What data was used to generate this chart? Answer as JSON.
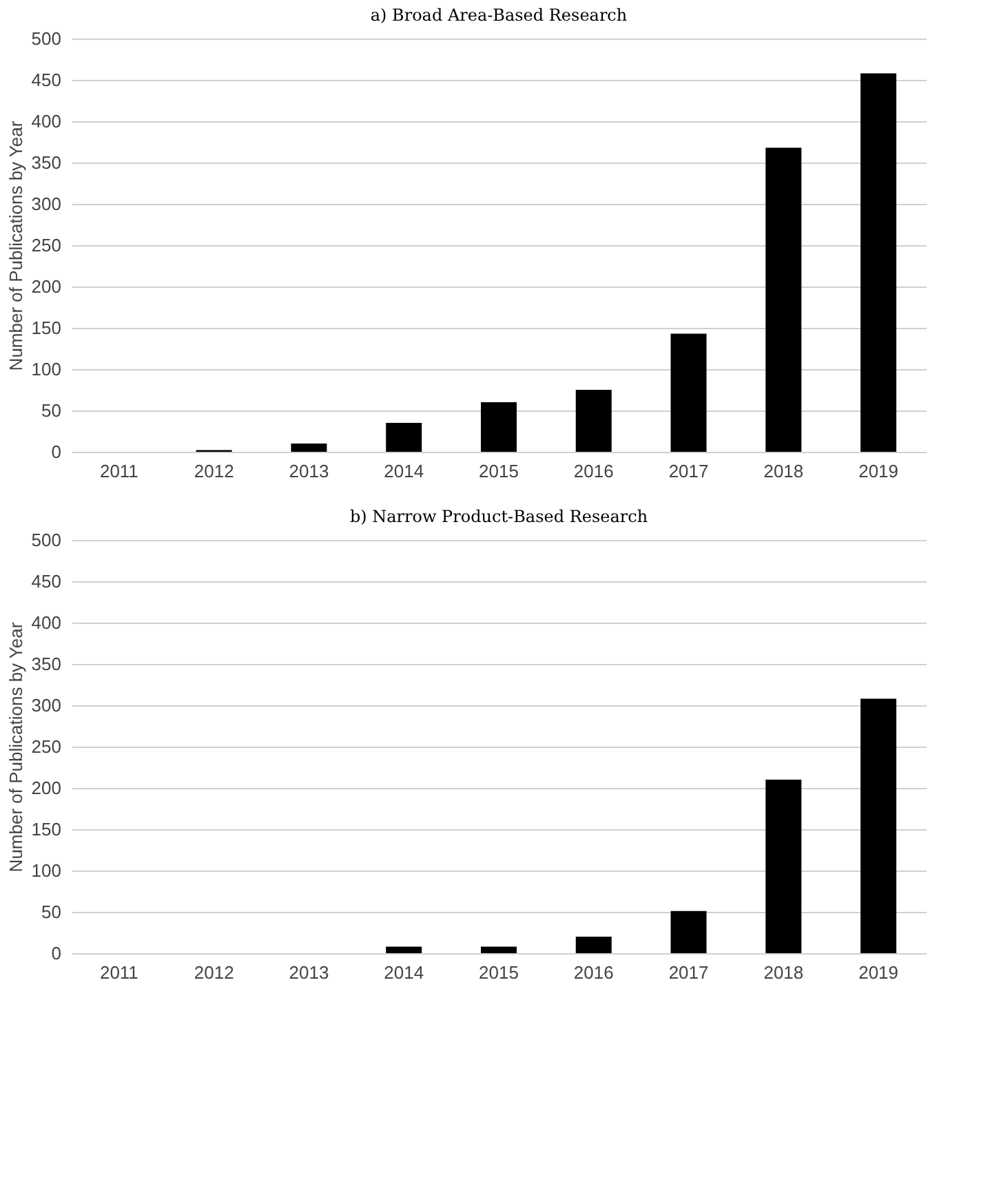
{
  "chart_data": [
    {
      "type": "bar",
      "title": "a) Broad Area-Based Research",
      "ylabel": "Number of Publications by Year",
      "categories": [
        "2011",
        "2012",
        "2013",
        "2014",
        "2015",
        "2016",
        "2017",
        "2018",
        "2019"
      ],
      "values": [
        0,
        2,
        10,
        35,
        60,
        75,
        143,
        368,
        458
      ],
      "color": "#000000",
      "ylim": [
        0,
        500
      ],
      "yticks": [
        0,
        50,
        100,
        150,
        200,
        250,
        300,
        350,
        400,
        450,
        500
      ],
      "grid": "y"
    },
    {
      "type": "bar",
      "title": "b) Narrow Product-Based Research",
      "ylabel": "Number of Publications by Year",
      "categories": [
        "2011",
        "2012",
        "2013",
        "2014",
        "2015",
        "2016",
        "2017",
        "2018",
        "2019"
      ],
      "values": [
        0,
        0,
        0,
        8,
        8,
        20,
        51,
        210,
        308
      ],
      "color": "#000000",
      "ylim": [
        0,
        500
      ],
      "yticks": [
        0,
        50,
        100,
        150,
        200,
        250,
        300,
        350,
        400,
        450,
        500
      ],
      "grid": "y"
    }
  ]
}
